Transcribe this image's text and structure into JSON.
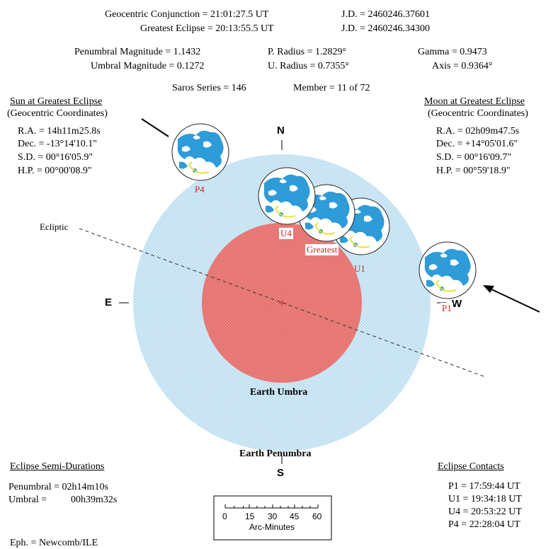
{
  "header": {
    "conjunction": "Geocentric Conjunction = 21:01:27.5 UT",
    "conjunction_jd": "J.D. = 2460246.37601",
    "greatest": "Greatest Eclipse = 20:13:55.5 UT",
    "greatest_jd": "J.D. = 2460246.34300",
    "pen_mag": "Penumbral Magnitude = 1.1432",
    "umb_mag": "Umbral Magnitude = 0.1272",
    "p_radius": "P. Radius = 1.2829°",
    "u_radius": "U. Radius = 0.7355°",
    "gamma": "Gamma = 0.9473",
    "axis": "Axis = 0.9364°",
    "saros": "Saros Series = 146",
    "member": "Member = 11 of 72"
  },
  "sun": {
    "title": "Sun at Greatest Eclipse",
    "subtitle": "(Geocentric Coordinates)",
    "ra": "R.A. = 14h11m25.8s",
    "dec": "Dec. = -13°14'10.1\"",
    "sd": "S.D. = 00°16'05.9\"",
    "hp": "H.P. = 00°00'08.9\""
  },
  "moon": {
    "title": "Moon at Greatest Eclipse",
    "subtitle": "(Geocentric Coordinates)",
    "ra": "R.A. = 02h09m47.5s",
    "dec": "Dec. = +14°05'01.6\"",
    "sd": "S.D. = 00°16'09.7\"",
    "hp": "H.P. = 00°59'18.9\""
  },
  "diagram": {
    "north": "N",
    "south": "S",
    "east": "E",
    "west": "W",
    "ecliptic": "Ecliptic",
    "umbra": "Earth Umbra",
    "penumbra": "Earth Penumbra",
    "contacts": [
      "P4",
      "U4",
      "Greatest",
      "U1",
      "P1"
    ]
  },
  "semi_durations": {
    "title": "Eclipse Semi-Durations",
    "penumbral": "Penumbral = 02h14m10s",
    "umbral_label": "Umbral =",
    "umbral_value": "00h39m32s"
  },
  "contacts": {
    "title": "Eclipse Contacts",
    "p1": "P1 = 17:59:44 UT",
    "u1": "U1 = 19:34:18 UT",
    "u4": "U4 = 20:53:22 UT",
    "p4": "P4 = 22:28:04 UT"
  },
  "scale": {
    "ticks": [
      "0",
      "15",
      "30",
      "45",
      "60"
    ],
    "label": "Arc-Minutes"
  },
  "footer": "Eph. = Newcomb/ILE",
  "colors": {
    "penumbra": "#cde6f4",
    "umbra": "#ea7c78",
    "moon_water": "#2e9cd8",
    "moon_land": "#ffffff",
    "label_red": "#d0231f"
  }
}
